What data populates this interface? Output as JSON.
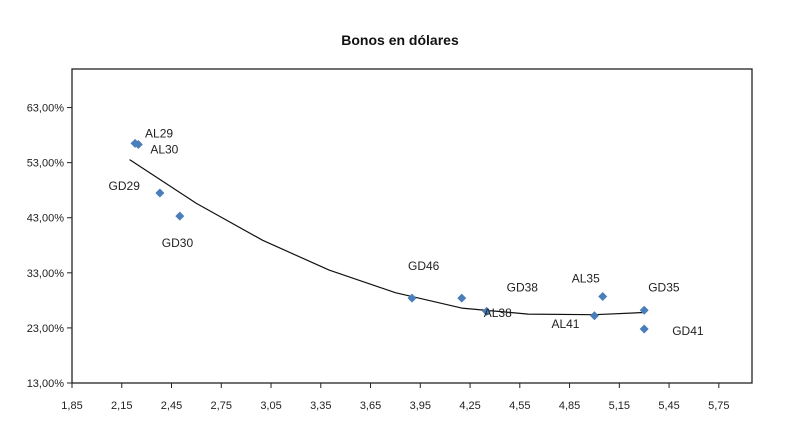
{
  "chart_data": {
    "type": "scatter",
    "title": "Bonos  en dólares",
    "xlabel": "",
    "ylabel": "",
    "xlim": [
      1.85,
      5.95
    ],
    "ylim": [
      13,
      70
    ],
    "x_ticks": [
      1.85,
      2.15,
      2.45,
      2.75,
      3.05,
      3.35,
      3.65,
      3.95,
      4.25,
      4.55,
      4.85,
      5.15,
      5.45,
      5.75
    ],
    "x_tick_labels": [
      "1,85",
      "2,15",
      "2,45",
      "2,75",
      "3,05",
      "3,35",
      "3,65",
      "3,95",
      "4,25",
      "4,55",
      "4,85",
      "5,15",
      "5,45",
      "5,75"
    ],
    "y_ticks": [
      13,
      23,
      33,
      43,
      53,
      63
    ],
    "y_tick_labels": [
      "13,00%",
      "23,00%",
      "33,00%",
      "43,00%",
      "53,00%",
      "63,00%"
    ],
    "grid": false,
    "legend": "none",
    "marker_color": "#4a7ebb",
    "trend_color": "#111111",
    "series": [
      {
        "points": [
          {
            "label": "AL29",
            "x": 2.23,
            "y": 56.5
          },
          {
            "label": "AL30",
            "x": 2.25,
            "y": 56.3
          },
          {
            "label": "GD29",
            "x": 2.38,
            "y": 47.5
          },
          {
            "label": "GD30",
            "x": 2.5,
            "y": 43.3
          },
          {
            "label": "GD46",
            "x": 3.9,
            "y": 28.4
          },
          {
            "label": "AL38",
            "x": 4.2,
            "y": 28.4
          },
          {
            "label": "GD38",
            "x": 4.35,
            "y": 26.0
          },
          {
            "label": "AL41",
            "x": 5.0,
            "y": 25.2
          },
          {
            "label": "AL35",
            "x": 5.05,
            "y": 28.7
          },
          {
            "label": "GD35",
            "x": 5.3,
            "y": 26.2
          },
          {
            "label": "GD41",
            "x": 5.3,
            "y": 22.8
          }
        ]
      }
    ],
    "trendline": {
      "type": "polynomial",
      "x_range": [
        2.2,
        5.3
      ],
      "points": [
        {
          "x": 2.2,
          "y": 53.5
        },
        {
          "x": 2.6,
          "y": 45.6
        },
        {
          "x": 3.0,
          "y": 38.9
        },
        {
          "x": 3.4,
          "y": 33.5
        },
        {
          "x": 3.8,
          "y": 29.4
        },
        {
          "x": 4.2,
          "y": 26.6
        },
        {
          "x": 4.6,
          "y": 25.5
        },
        {
          "x": 5.0,
          "y": 25.4
        },
        {
          "x": 5.3,
          "y": 25.8
        }
      ]
    }
  }
}
